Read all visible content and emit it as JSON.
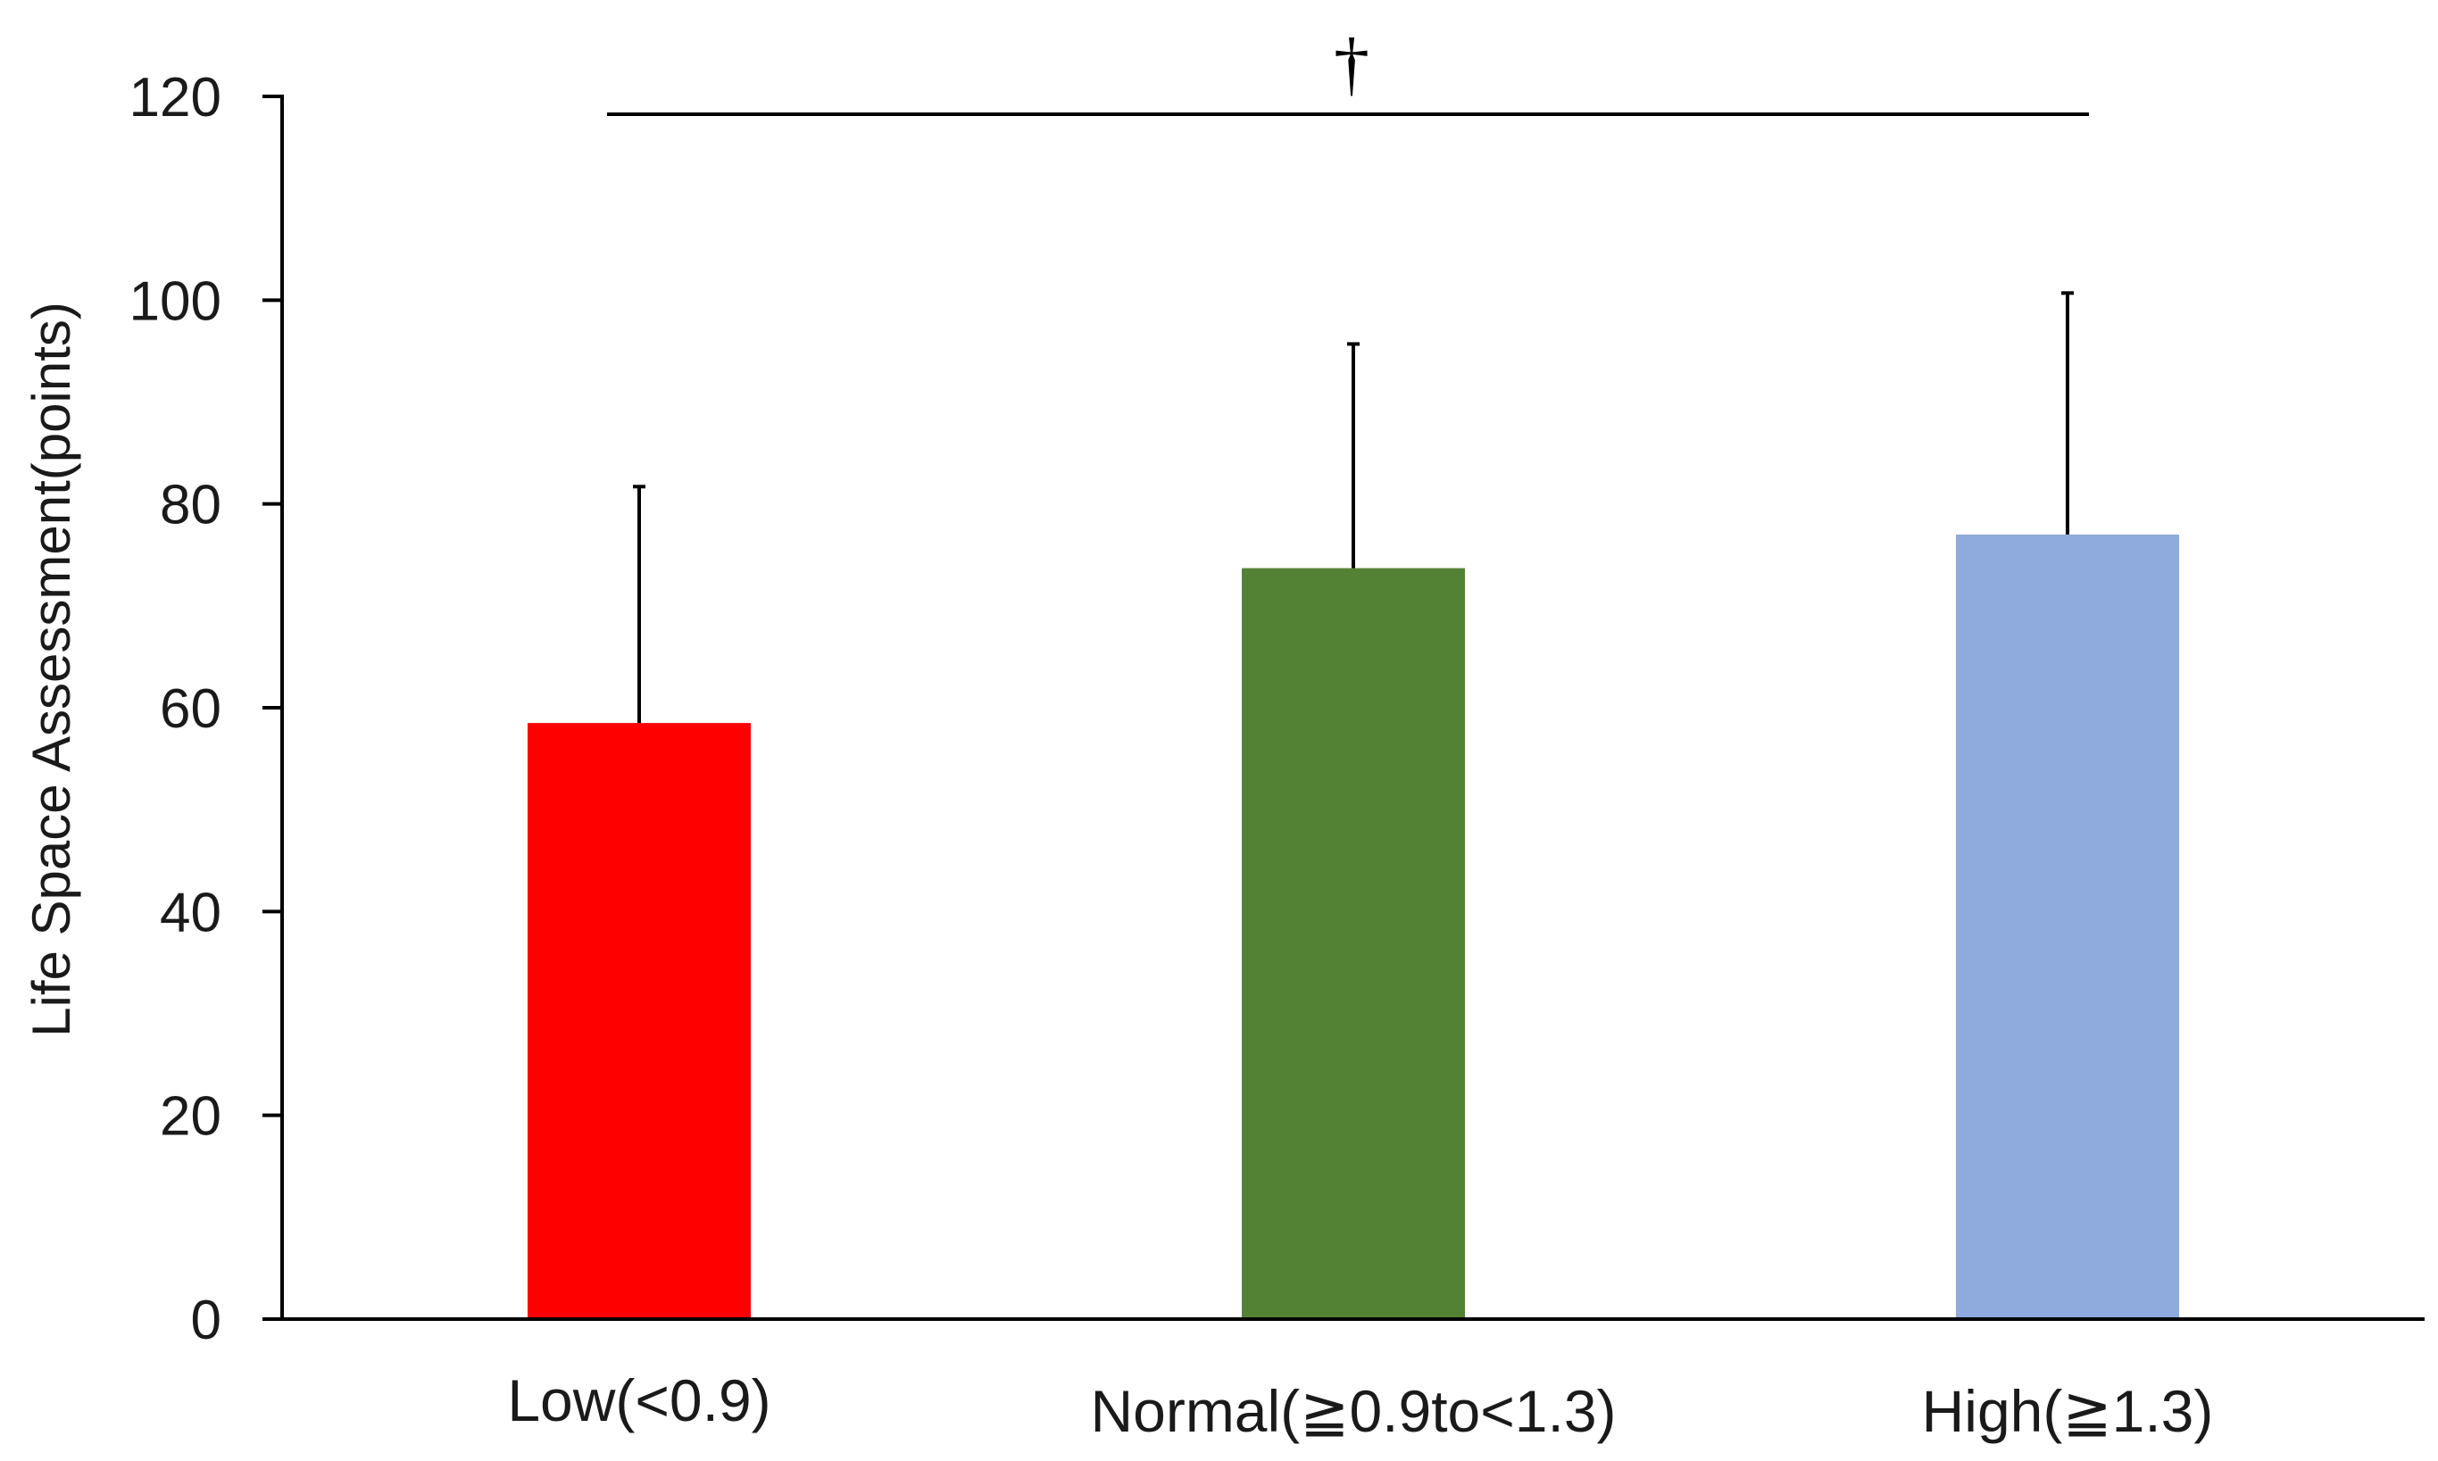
{
  "chart_data": {
    "type": "bar",
    "title": "",
    "xlabel": "",
    "ylabel": "Life Space Assessment(points)",
    "categories": [
      "Low(<0.9)",
      "Normal(≧0.9to<1.3)",
      "High(≧1.3)"
    ],
    "values": [
      58.5,
      73.7,
      77.0
    ],
    "error_plus": [
      23.2,
      22.0,
      23.7
    ],
    "colors": [
      "#ff0000",
      "#548235",
      "#8faadc"
    ],
    "ylim": [
      0,
      120
    ],
    "yticks": [
      "0",
      "20",
      "40",
      "60",
      "80",
      "100",
      "120"
    ],
    "grid": false,
    "legend": "none",
    "significance": {
      "from_category": "Low(<0.9)",
      "to_category": "High(≧1.3)",
      "mark": "†"
    }
  }
}
